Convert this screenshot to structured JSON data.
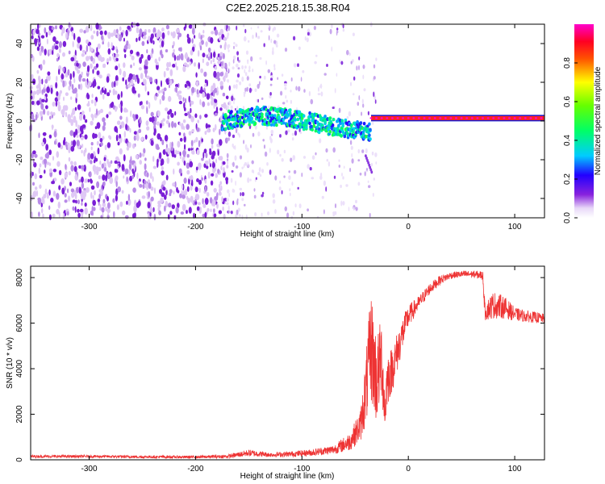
{
  "title": "C2E2.2025.218.15.38.R04",
  "chart_data": [
    {
      "type": "heatmap",
      "xlabel": "Height of straight line (km)",
      "ylabel": "Frequency (Hz)",
      "xlim": [
        -355,
        128
      ],
      "ylim": [
        -50,
        50
      ],
      "xticks": [
        -300,
        -200,
        -100,
        0,
        100
      ],
      "yticks": [
        -40,
        -20,
        0,
        20,
        40
      ],
      "colorbar": {
        "label": "Normalized spectral amplitude",
        "range": [
          0.0,
          1.0
        ],
        "ticks": [
          "0.0",
          "0.2",
          "0.4",
          "0.6",
          "0.8"
        ],
        "colormap": "purple-blue-cyan-green-yellow-red-magenta"
      },
      "regions": [
        {
          "name": "noise",
          "x": [
            -355,
            -170
          ],
          "y": [
            -50,
            50
          ],
          "amplitude": 0.05
        },
        {
          "name": "sparse noise",
          "x": [
            -170,
            -30
          ],
          "y": [
            -50,
            50
          ],
          "amplitude": 0.02
        },
        {
          "name": "signal",
          "x": [
            -175,
            -35
          ],
          "freq_center_hz": [
            0,
            3,
            1,
            -3,
            -6
          ],
          "amplitude": [
            0.2,
            0.5
          ]
        },
        {
          "name": "carrier",
          "x": [
            -35,
            128
          ],
          "freq_center_hz": 1.5,
          "amplitude": 0.9
        }
      ]
    },
    {
      "type": "line",
      "xlabel": "Height of straight line (km)",
      "ylabel": "SNR (10 * v/v)",
      "xlim": [
        -355,
        128
      ],
      "ylim": [
        0,
        8500
      ],
      "xticks": [
        -300,
        -200,
        -100,
        0,
        100
      ],
      "yticks": [
        0,
        2000,
        4000,
        6000,
        8000
      ],
      "color": "#ee3333",
      "series": [
        {
          "x": [
            -355,
            -300,
            -250,
            -200,
            -170,
            -150,
            -130,
            -110,
            -90,
            -70,
            -55,
            -45,
            -40,
            -35,
            -30,
            -25,
            -22,
            -20,
            -15,
            -10,
            -5,
            0,
            10,
            20,
            30,
            40,
            50,
            60,
            70,
            72,
            80,
            90,
            100,
            110,
            120,
            128
          ],
          "values": [
            150,
            150,
            130,
            120,
            150,
            300,
            220,
            250,
            320,
            450,
            800,
            1500,
            3000,
            5000,
            3500,
            4500,
            2000,
            3500,
            4000,
            4800,
            5600,
            6300,
            6900,
            7500,
            7900,
            8100,
            8150,
            8150,
            8100,
            6500,
            6800,
            6700,
            6400,
            6300,
            6250,
            6200
          ],
          "noise": [
            60,
            60,
            60,
            60,
            80,
            150,
            100,
            120,
            150,
            200,
            400,
            700,
            1500,
            2500,
            2000,
            1800,
            1000,
            1200,
            1000,
            900,
            700,
            500,
            300,
            250,
            200,
            150,
            150,
            150,
            200,
            400,
            600,
            500,
            300,
            250,
            250,
            200
          ]
        }
      ]
    }
  ]
}
